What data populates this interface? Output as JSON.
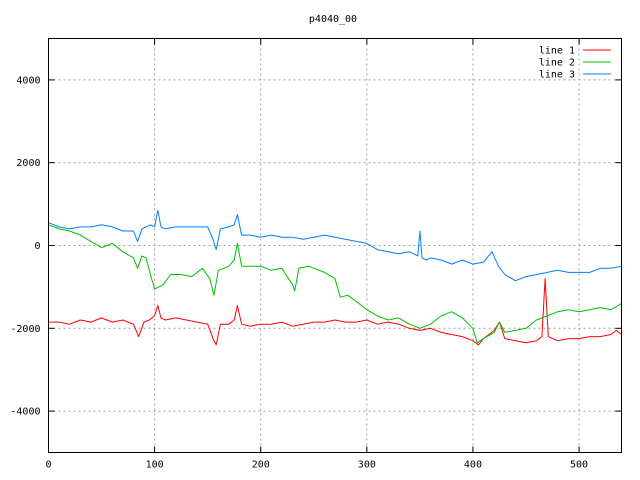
{
  "chart_data": {
    "type": "line",
    "title": "p4040_00",
    "xlabel": "",
    "ylabel": "",
    "xlim": [
      0,
      540
    ],
    "ylim": [
      -5000,
      5000
    ],
    "xticks": [
      0,
      100,
      200,
      300,
      400,
      500
    ],
    "yticks": [
      -4000,
      -2000,
      0,
      2000,
      4000
    ],
    "grid": true,
    "legend_position": "top-right",
    "series": [
      {
        "name": "line 1",
        "color": "#ff0000",
        "x": [
          0,
          10,
          20,
          30,
          40,
          50,
          60,
          70,
          80,
          85,
          90,
          95,
          100,
          103,
          106,
          110,
          120,
          130,
          140,
          150,
          155,
          158,
          162,
          170,
          175,
          178,
          182,
          190,
          200,
          210,
          220,
          230,
          240,
          250,
          260,
          270,
          280,
          290,
          300,
          310,
          320,
          330,
          340,
          350,
          360,
          370,
          380,
          390,
          400,
          405,
          410,
          415,
          420,
          425,
          430,
          440,
          450,
          460,
          465,
          468,
          471,
          475,
          480,
          490,
          500,
          510,
          520,
          530,
          535,
          540
        ],
        "y": [
          -1850,
          -1850,
          -1900,
          -1800,
          -1850,
          -1750,
          -1850,
          -1800,
          -1900,
          -2200,
          -1850,
          -1800,
          -1700,
          -1450,
          -1750,
          -1800,
          -1750,
          -1800,
          -1850,
          -1900,
          -2250,
          -2400,
          -1900,
          -1900,
          -1800,
          -1450,
          -1900,
          -1950,
          -1900,
          -1900,
          -1850,
          -1950,
          -1900,
          -1850,
          -1850,
          -1800,
          -1850,
          -1850,
          -1800,
          -1900,
          -1850,
          -1900,
          -2000,
          -2050,
          -2000,
          -2100,
          -2150,
          -2200,
          -2300,
          -2400,
          -2250,
          -2150,
          -2050,
          -1850,
          -2250,
          -2300,
          -2350,
          -2300,
          -2200,
          -800,
          -2200,
          -2250,
          -2300,
          -2250,
          -2250,
          -2200,
          -2200,
          -2150,
          -2050,
          -2150
        ]
      },
      {
        "name": "line 2",
        "color": "#00c000",
        "x": [
          0,
          10,
          20,
          30,
          40,
          50,
          60,
          70,
          80,
          84,
          88,
          92,
          96,
          100,
          104,
          108,
          115,
          125,
          135,
          145,
          152,
          156,
          160,
          165,
          170,
          175,
          178,
          182,
          190,
          200,
          210,
          220,
          230,
          232,
          236,
          245,
          260,
          270,
          275,
          282,
          290,
          300,
          310,
          320,
          330,
          340,
          350,
          360,
          370,
          380,
          390,
          400,
          404,
          410,
          420,
          425,
          430,
          440,
          450,
          460,
          470,
          480,
          490,
          500,
          510,
          520,
          530,
          540
        ],
        "y": [
          500,
          400,
          350,
          250,
          100,
          -50,
          50,
          -150,
          -300,
          -550,
          -250,
          -300,
          -700,
          -1050,
          -1000,
          -950,
          -700,
          -700,
          -750,
          -550,
          -800,
          -1200,
          -600,
          -550,
          -500,
          -350,
          50,
          -500,
          -500,
          -500,
          -600,
          -550,
          -950,
          -1100,
          -550,
          -500,
          -650,
          -800,
          -1250,
          -1200,
          -1350,
          -1550,
          -1700,
          -1800,
          -1750,
          -1900,
          -2000,
          -1900,
          -1700,
          -1600,
          -1750,
          -2000,
          -2350,
          -2250,
          -2100,
          -1850,
          -2100,
          -2050,
          -2000,
          -1800,
          -1700,
          -1600,
          -1550,
          -1600,
          -1550,
          -1500,
          -1550,
          -1400
        ]
      },
      {
        "name": "line 3",
        "color": "#0080ff",
        "x": [
          0,
          10,
          20,
          30,
          40,
          50,
          60,
          70,
          80,
          84,
          88,
          92,
          96,
          100,
          103,
          106,
          110,
          120,
          130,
          140,
          150,
          155,
          158,
          162,
          170,
          175,
          178,
          182,
          190,
          200,
          210,
          220,
          230,
          240,
          250,
          260,
          270,
          280,
          290,
          300,
          310,
          320,
          330,
          340,
          348,
          350,
          352,
          356,
          360,
          370,
          380,
          390,
          400,
          410,
          418,
          424,
          430,
          440,
          450,
          460,
          470,
          480,
          490,
          500,
          510,
          520,
          530,
          540
        ],
        "y": [
          550,
          450,
          400,
          450,
          450,
          500,
          450,
          350,
          350,
          100,
          400,
          450,
          500,
          450,
          850,
          450,
          400,
          450,
          450,
          450,
          450,
          150,
          -100,
          400,
          450,
          500,
          750,
          250,
          250,
          200,
          250,
          200,
          200,
          150,
          200,
          250,
          200,
          150,
          100,
          50,
          -100,
          -150,
          -200,
          -150,
          -250,
          350,
          -300,
          -350,
          -300,
          -350,
          -450,
          -350,
          -450,
          -400,
          -150,
          -500,
          -700,
          -850,
          -750,
          -700,
          -650,
          -600,
          -650,
          -650,
          -650,
          -550,
          -550,
          -500
        ]
      }
    ]
  }
}
